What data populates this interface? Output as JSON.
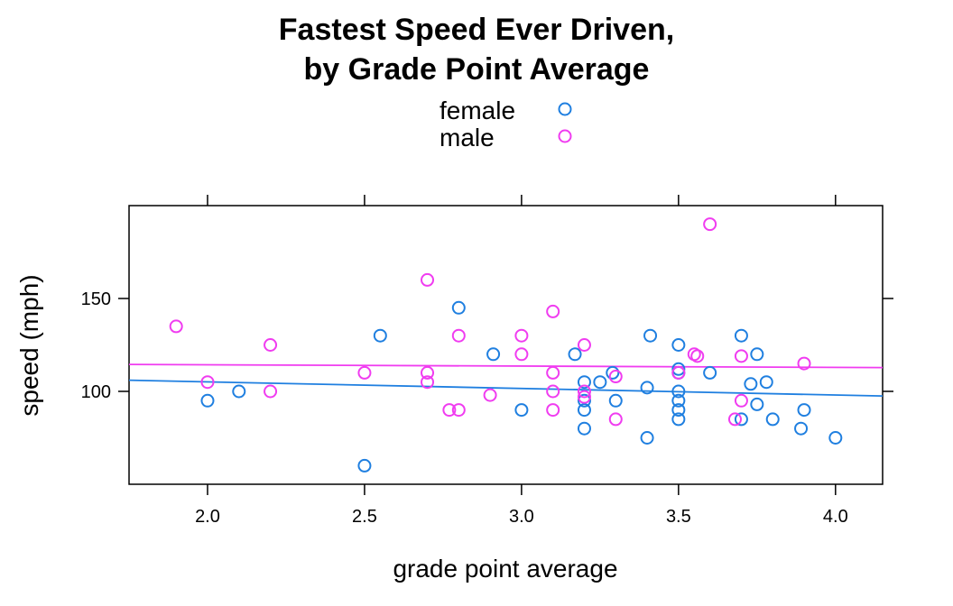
{
  "chart_data": {
    "type": "scatter",
    "title_line1": "Fastest Speed Ever Driven,",
    "title_line2": "by Grade Point Average",
    "xlabel": "grade point average",
    "ylabel": "speed (mph)",
    "xlim": [
      1.75,
      4.15
    ],
    "ylim": [
      50,
      200
    ],
    "x_ticks": [
      2.0,
      2.5,
      3.0,
      3.5,
      4.0
    ],
    "x_tick_labels": [
      "2.0",
      "2.5",
      "3.0",
      "3.5",
      "4.0"
    ],
    "y_ticks": [
      100,
      150
    ],
    "y_tick_labels": [
      "100",
      "150"
    ],
    "legend_position": "top",
    "grid": false,
    "series": [
      {
        "name": "female",
        "color": "#1f7fe0",
        "points": [
          [
            2.0,
            95
          ],
          [
            2.1,
            100
          ],
          [
            2.5,
            60
          ],
          [
            2.55,
            130
          ],
          [
            2.8,
            145
          ],
          [
            2.91,
            120
          ],
          [
            3.0,
            90
          ],
          [
            3.17,
            120
          ],
          [
            3.2,
            105
          ],
          [
            3.2,
            95
          ],
          [
            3.2,
            90
          ],
          [
            3.2,
            80
          ],
          [
            3.25,
            105
          ],
          [
            3.29,
            110
          ],
          [
            3.3,
            95
          ],
          [
            3.4,
            102
          ],
          [
            3.4,
            75
          ],
          [
            3.41,
            130
          ],
          [
            3.5,
            125
          ],
          [
            3.5,
            112
          ],
          [
            3.5,
            110
          ],
          [
            3.5,
            100
          ],
          [
            3.5,
            95
          ],
          [
            3.5,
            90
          ],
          [
            3.5,
            85
          ],
          [
            3.6,
            110
          ],
          [
            3.7,
            130
          ],
          [
            3.7,
            85
          ],
          [
            3.73,
            104
          ],
          [
            3.75,
            120
          ],
          [
            3.75,
            93
          ],
          [
            3.78,
            105
          ],
          [
            3.8,
            85
          ],
          [
            3.89,
            80
          ],
          [
            3.9,
            90
          ],
          [
            4.0,
            75
          ]
        ],
        "fit": [
          [
            1.75,
            106
          ],
          [
            4.15,
            97.5
          ]
        ]
      },
      {
        "name": "male",
        "color": "#f03cf0",
        "points": [
          [
            1.9,
            135
          ],
          [
            2.0,
            105
          ],
          [
            2.2,
            125
          ],
          [
            2.2,
            100
          ],
          [
            2.5,
            110
          ],
          [
            2.7,
            160
          ],
          [
            2.7,
            110
          ],
          [
            2.7,
            105
          ],
          [
            2.77,
            90
          ],
          [
            2.8,
            130
          ],
          [
            2.8,
            90
          ],
          [
            2.9,
            98
          ],
          [
            3.0,
            130
          ],
          [
            3.0,
            120
          ],
          [
            3.1,
            143
          ],
          [
            3.1,
            110
          ],
          [
            3.1,
            100
          ],
          [
            3.1,
            90
          ],
          [
            3.2,
            125
          ],
          [
            3.2,
            100
          ],
          [
            3.2,
            97
          ],
          [
            3.3,
            108
          ],
          [
            3.3,
            85
          ],
          [
            3.5,
            110
          ],
          [
            3.55,
            120
          ],
          [
            3.56,
            119
          ],
          [
            3.6,
            190
          ],
          [
            3.68,
            85
          ],
          [
            3.7,
            119
          ],
          [
            3.7,
            95
          ],
          [
            3.9,
            115
          ]
        ],
        "fit": [
          [
            1.75,
            114.5
          ],
          [
            4.15,
            112.8
          ]
        ]
      }
    ]
  }
}
